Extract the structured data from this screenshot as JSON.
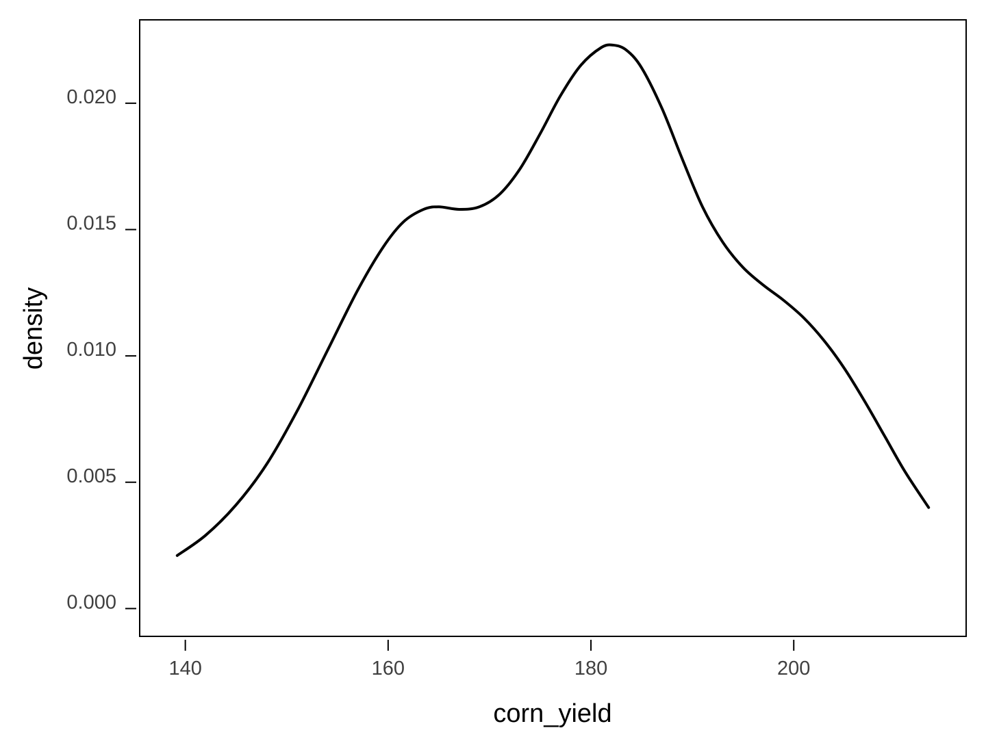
{
  "chart_data": {
    "type": "line",
    "title": "",
    "xlabel": "corn_yield",
    "ylabel": "density",
    "xlim": [
      135.5,
      217
    ],
    "ylim": [
      -0.0011,
      0.0233
    ],
    "x_ticks": [
      140,
      160,
      180,
      200
    ],
    "x_tick_labels": [
      "140",
      "160",
      "180",
      "200"
    ],
    "y_ticks": [
      0.0,
      0.005,
      0.01,
      0.015,
      0.02
    ],
    "y_tick_labels": [
      "0.000",
      "0.005",
      "0.010",
      "0.015",
      "0.020"
    ],
    "grid": false,
    "legend": "none",
    "line_color": "#000000",
    "series": [
      {
        "x": [
          139.2,
          142,
          145,
          148,
          151,
          154,
          157,
          159.5,
          161.5,
          163.5,
          165,
          167,
          169,
          171,
          173,
          175,
          177,
          179,
          181,
          182.2,
          183.5,
          185,
          187,
          189,
          191,
          193,
          195,
          197,
          199,
          201,
          203,
          205,
          207,
          209,
          211,
          213.3
        ],
        "values": [
          0.0021,
          0.0029,
          0.0041,
          0.0057,
          0.0078,
          0.0102,
          0.0126,
          0.0143,
          0.0153,
          0.0158,
          0.0159,
          0.0158,
          0.0159,
          0.0164,
          0.0174,
          0.0188,
          0.0203,
          0.0215,
          0.0222,
          0.0223,
          0.0221,
          0.0214,
          0.0198,
          0.0178,
          0.0159,
          0.0145,
          0.0135,
          0.0128,
          0.0122,
          0.0115,
          0.0106,
          0.0095,
          0.0082,
          0.0068,
          0.0054,
          0.004
        ]
      }
    ]
  }
}
